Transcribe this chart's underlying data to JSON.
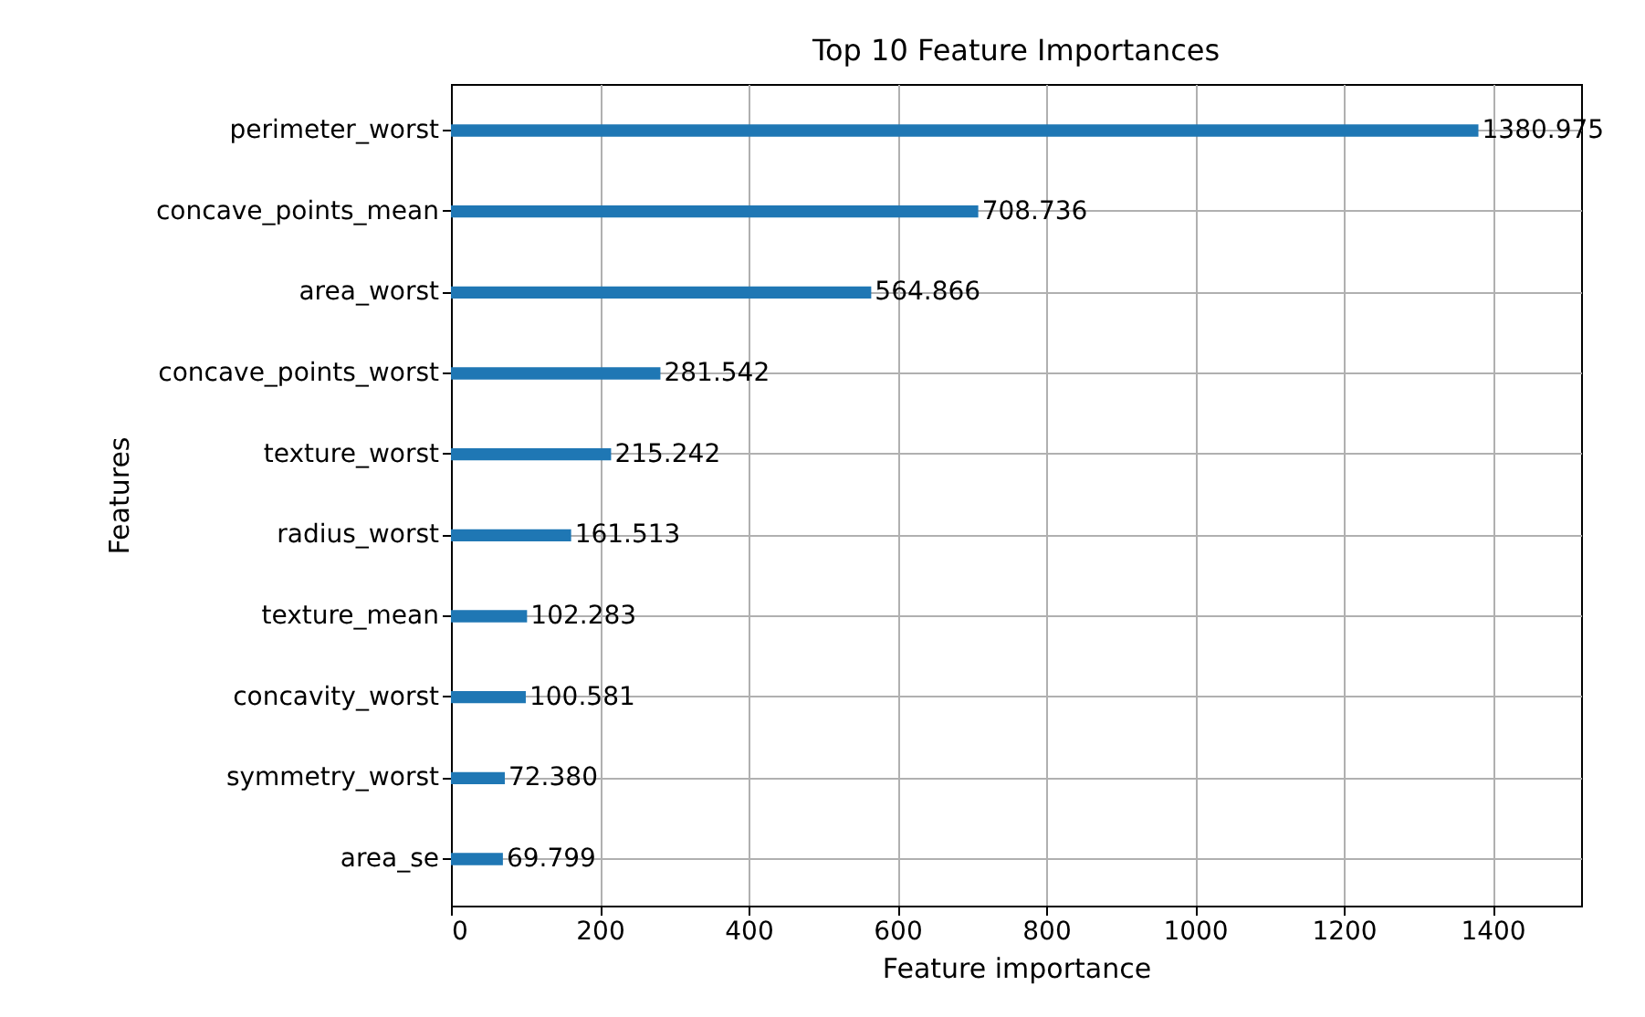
{
  "chart_data": {
    "type": "bar",
    "orientation": "horizontal",
    "title": "Top 10 Feature Importances",
    "xlabel": "Feature importance",
    "ylabel": "Features",
    "categories": [
      "perimeter_worst",
      "concave_points_mean",
      "area_worst",
      "concave_points_worst",
      "texture_worst",
      "radius_worst",
      "texture_mean",
      "concavity_worst",
      "symmetry_worst",
      "area_se"
    ],
    "values": [
      1380.975,
      708.736,
      564.866,
      281.542,
      215.242,
      161.513,
      102.283,
      100.581,
      72.38,
      69.799
    ],
    "value_labels": [
      "1380.975",
      "708.736",
      "564.866",
      "281.542",
      "215.242",
      "161.513",
      "102.283",
      "100.581",
      "72.380",
      "69.799"
    ],
    "color": "#1f77b4",
    "xlim": [
      0,
      1519
    ],
    "xticks": [
      0,
      200,
      400,
      600,
      800,
      1000,
      1200,
      1400
    ],
    "grid": true
  }
}
